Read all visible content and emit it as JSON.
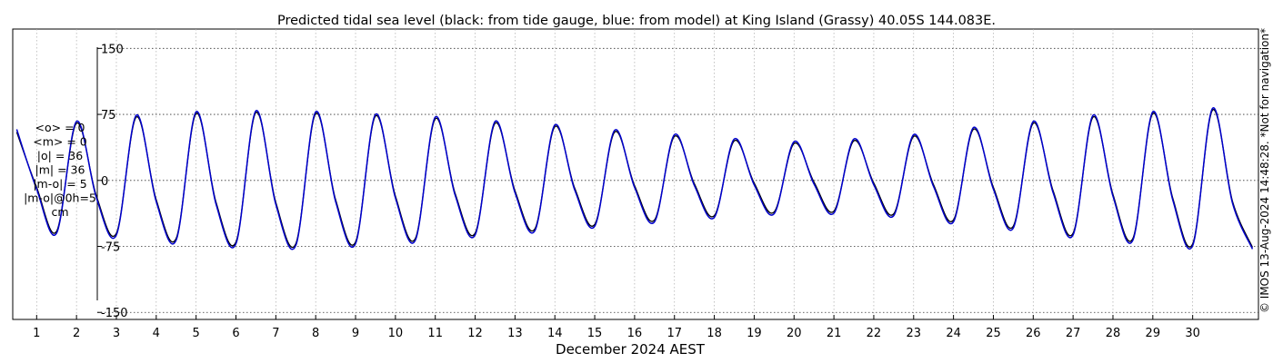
{
  "chart_data": {
    "type": "line",
    "title": "Predicted tidal sea level (black: from tide gauge, blue: from model) at King Island (Grassy) 40.05S 144.083E.",
    "xlabel": "December 2024 AEST",
    "ylabel": "",
    "xlim": [
      0.4,
      31.65
    ],
    "ylim": [
      -158,
      172
    ],
    "grid": true,
    "y_ticks": [
      -150,
      -75,
      0,
      75,
      150
    ],
    "y_tick_labels": [
      "-150",
      "-75",
      "0",
      "75",
      "150"
    ],
    "x_ticks": [
      1,
      2,
      3,
      4,
      5,
      6,
      7,
      8,
      9,
      10,
      11,
      12,
      13,
      14,
      15,
      16,
      17,
      18,
      19,
      20,
      21,
      22,
      23,
      24,
      25,
      26,
      27,
      28,
      29,
      30
    ],
    "x_tick_labels": [
      "1",
      "2",
      "3",
      "4",
      "5",
      "6",
      "7",
      "8",
      "9",
      "10",
      "11",
      "12",
      "13",
      "14",
      "15",
      "16",
      "17",
      "18",
      "19",
      "20",
      "21",
      "22",
      "23",
      "24",
      "25",
      "26",
      "27",
      "28",
      "29",
      "30"
    ],
    "stats": [
      "<o> = 0",
      "<m> = 0",
      "|o| = 36",
      "|m| = 36",
      "|m-o| = 5",
      "|m-o|@0h=5",
      "cm"
    ],
    "credit": "© IMOS 13-Aug-2024 14:48:28. *Not for navigation*",
    "series": [
      {
        "color": "#000000",
        "x": [
          0.5,
          1.0,
          1.5,
          2.0,
          2.5,
          3.0,
          3.5,
          4.0,
          4.5,
          5.0,
          5.5,
          6.0,
          6.5,
          7.0,
          7.5,
          8.0,
          8.5,
          9.0,
          9.5,
          10.0,
          10.5,
          11.0,
          11.5,
          12.0,
          12.5,
          13.0,
          13.5,
          14.0,
          14.5,
          15.0,
          15.5,
          16.0,
          16.5,
          17.0,
          17.5,
          18.0,
          18.5,
          19.0,
          19.5,
          20.0,
          20.5,
          21.0,
          21.5,
          22.0,
          22.5,
          23.0,
          23.5,
          24.0,
          24.5,
          25.0,
          25.5,
          26.0,
          26.5,
          27.0,
          27.5,
          28.0,
          28.5,
          29.0,
          29.5,
          30.0,
          30.5,
          31.0,
          31.5
        ],
        "y": [
          55,
          -8,
          -58,
          65,
          -18,
          -60,
          72,
          -22,
          -66,
          76,
          -25,
          -70,
          77,
          -25,
          -72,
          76,
          -22,
          -70,
          73,
          -18,
          -66,
          70,
          -15,
          -60,
          65,
          -12,
          -55,
          61,
          -9,
          -50,
          55,
          -6,
          -45,
          50,
          -4,
          -40,
          45,
          -3,
          -36,
          42,
          -2,
          -35,
          45,
          -3,
          -38,
          50,
          -5,
          -45,
          58,
          -8,
          -52,
          65,
          -12,
          -60,
          72,
          -16,
          -66,
          76,
          -20,
          -72,
          80,
          -24,
          -76
        ]
      },
      {
        "color": "#0000cc",
        "x": [
          0.5,
          1.0,
          1.5,
          2.0,
          2.5,
          3.0,
          3.5,
          4.0,
          4.5,
          5.0,
          5.5,
          6.0,
          6.5,
          7.0,
          7.5,
          8.0,
          8.5,
          9.0,
          9.5,
          10.0,
          10.5,
          11.0,
          11.5,
          12.0,
          12.5,
          13.0,
          13.5,
          14.0,
          14.5,
          15.0,
          15.5,
          16.0,
          16.5,
          17.0,
          17.5,
          18.0,
          18.5,
          19.0,
          19.5,
          20.0,
          20.5,
          21.0,
          21.5,
          22.0,
          22.5,
          23.0,
          23.5,
          24.0,
          24.5,
          25.0,
          25.5,
          26.0,
          26.5,
          27.0,
          27.5,
          28.0,
          28.5,
          29.0,
          29.5,
          30.0,
          30.5,
          31.0,
          31.5
        ],
        "y": [
          58,
          -10,
          -60,
          67,
          -20,
          -62,
          74,
          -24,
          -68,
          78,
          -27,
          -72,
          79,
          -27,
          -74,
          78,
          -24,
          -72,
          75,
          -20,
          -68,
          72,
          -17,
          -62,
          67,
          -14,
          -57,
          63,
          -11,
          -52,
          57,
          -8,
          -47,
          52,
          -6,
          -42,
          47,
          -5,
          -38,
          44,
          -4,
          -37,
          47,
          -5,
          -40,
          52,
          -7,
          -47,
          60,
          -10,
          -54,
          67,
          -14,
          -62,
          74,
          -18,
          -68,
          78,
          -22,
          -74,
          82,
          -26,
          -78
        ]
      }
    ]
  }
}
